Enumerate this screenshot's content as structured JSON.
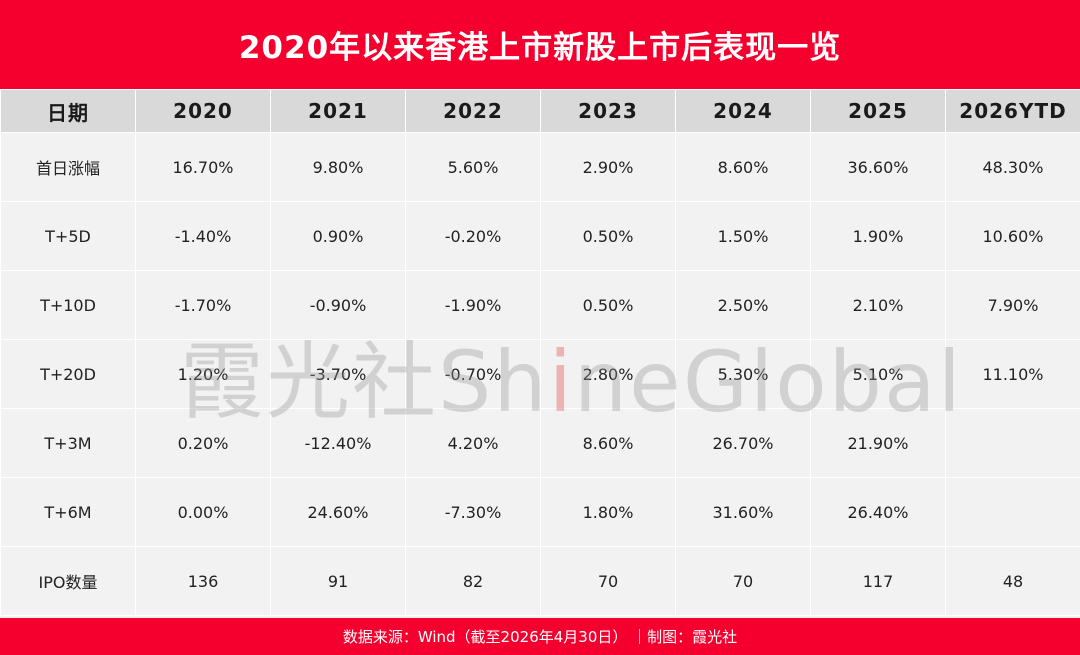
{
  "title": "2020年以来香港上市新股上市后表现一览",
  "chart_data": {
    "type": "table",
    "columns": [
      "日期",
      "2020",
      "2021",
      "2022",
      "2023",
      "2024",
      "2025",
      "2026YTD"
    ],
    "rows": [
      [
        "首日涨幅",
        "16.70%",
        "9.80%",
        "5.60%",
        "2.90%",
        "8.60%",
        "36.60%",
        "48.30%"
      ],
      [
        "T+5D",
        "-1.40%",
        "0.90%",
        "-0.20%",
        "0.50%",
        "1.50%",
        "1.90%",
        "10.60%"
      ],
      [
        "T+10D",
        "-1.70%",
        "-0.90%",
        "-1.90%",
        "0.50%",
        "2.50%",
        "2.10%",
        "7.90%"
      ],
      [
        "T+20D",
        "1.20%",
        "-3.70%",
        "-0.70%",
        "2.80%",
        "5.30%",
        "5.10%",
        "11.10%"
      ],
      [
        "T+3M",
        "0.20%",
        "-12.40%",
        "4.20%",
        "8.60%",
        "26.70%",
        "21.90%",
        ""
      ],
      [
        "T+6M",
        "0.00%",
        "24.60%",
        "-7.30%",
        "1.80%",
        "31.60%",
        "26.40%",
        ""
      ],
      [
        "IPO数量",
        "136",
        "91",
        "82",
        "70",
        "70",
        "117",
        "48"
      ]
    ]
  },
  "watermark": {
    "cn": "霞光社",
    "en_a": "Sh",
    "en_i": "i",
    "en_b": "neGlobal"
  },
  "footer": "数据来源：Wind（截至2026年4月30日） ｜制图：霞光社",
  "colors": {
    "brand": "#f5002e",
    "header_bg": "#d9d9d9",
    "cell_bg": "#f2f2f2"
  }
}
